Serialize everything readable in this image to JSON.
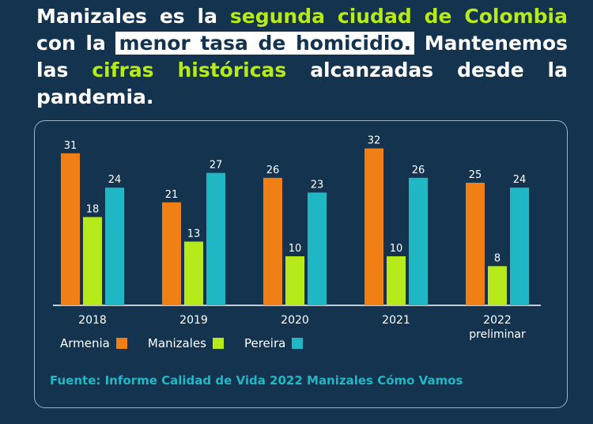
{
  "headline": {
    "part1": "Manizales es la ",
    "part2": "segunda ciudad de Colombia",
    "part3": " con la ",
    "part4": "menor tasa de homicidio.",
    "part5": " Mantenemos las ",
    "part6": "cifras históricas",
    "part7": " alcanzadas desde la pandemia."
  },
  "colors": {
    "background": "#13334f",
    "Armenia": "#f07f16",
    "Manizales": "#b7ea1a",
    "Pereira": "#1fb7c4"
  },
  "chart_data": {
    "type": "bar",
    "categories": [
      [
        "2018"
      ],
      [
        "2019"
      ],
      [
        "2020"
      ],
      [
        "2021"
      ],
      [
        "2022",
        "preliminar"
      ]
    ],
    "series": [
      {
        "name": "Armenia",
        "values": [
          31,
          21,
          26,
          32,
          25
        ]
      },
      {
        "name": "Manizales",
        "values": [
          18,
          13,
          10,
          10,
          8
        ]
      },
      {
        "name": "Pereira",
        "values": [
          24,
          27,
          23,
          26,
          24
        ]
      }
    ],
    "ylim": [
      0,
      35
    ],
    "legend": "bottom-left",
    "grid": false,
    "data_labels": true
  },
  "legend": {
    "armenia": "Armenia",
    "manizales": "Manizales",
    "pereira": "Pereira"
  },
  "source": "Fuente: Informe Calidad de Vida 2022 Manizales Cómo Vamos"
}
